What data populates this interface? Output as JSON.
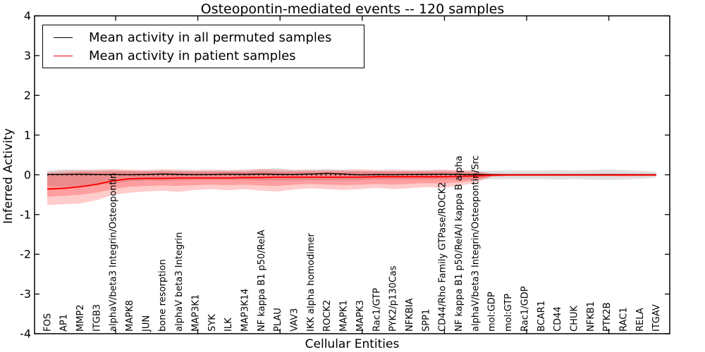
{
  "chart_data": {
    "type": "line",
    "title": "Osteopontin-mediated events -- 120 samples",
    "xlabel": "Cellular Entities",
    "ylabel": "Inferred Activity",
    "ylim": [
      -4,
      4
    ],
    "yticks": [
      4,
      3,
      2,
      1,
      0,
      -1,
      -2,
      -3,
      -4
    ],
    "grid": false,
    "zero_line": {
      "y": 0,
      "style": "dotted",
      "color": "#000000"
    },
    "legend": {
      "position": "upper left",
      "entries": [
        {
          "label": "Mean activity in all permuted samples",
          "color": "#000000"
        },
        {
          "label": "Mean activity in patient samples",
          "color": "#ff0000"
        }
      ]
    },
    "categories": [
      "FOS",
      "AP1",
      "MMP2",
      "ITGB3",
      "alphaV/beta3 Integrin/Osteopontin",
      "MAPK8",
      "JUN",
      "bone resorption",
      "alphaV beta3 Integrin",
      "MAP3K1",
      "SYK",
      "ILK",
      "MAP3K14",
      "NF kappa B1 p50/RelA",
      "PLAU",
      "VAV3",
      "IKK alpha homodimer",
      "ROCK2",
      "MAPK1",
      "MAPK3",
      "Rac1/GTP",
      "PYK2/p130Cas",
      "NFKBIA",
      "SPP1",
      "CD44/Rho Family GTPase/ROCK2",
      "NF kappa B1 p50/RelA/I kappa B alpha",
      "alphaV/beta3 Integrin/Osteopontin/Src",
      "mol:GDP",
      "mol:GTP",
      "Rac1/GDP",
      "BCAR1",
      "CD44",
      "CHUK",
      "NFKB1",
      "PTK2B",
      "RAC1",
      "RELA",
      "ITGAV"
    ],
    "series": [
      {
        "name": "Mean activity in all permuted samples",
        "color": "#000000",
        "values": [
          0.01,
          0.01,
          0.015,
          0.01,
          0.008,
          0.005,
          0.01,
          0.02,
          0.012,
          0.006,
          0.01,
          0.015,
          0.012,
          0.02,
          0.012,
          0.01,
          0.02,
          0.035,
          0.02,
          0.0,
          0.008,
          0.005,
          0.01,
          0.012,
          0.015,
          0.01,
          0.006,
          0.004,
          0.004,
          0.004,
          0.004,
          0.005,
          0.004,
          0.005,
          0.006,
          0.005,
          0.004,
          0.004
        ]
      },
      {
        "name": "Mean activity in patient samples",
        "color": "#ff0000",
        "values": [
          -0.36,
          -0.34,
          -0.3,
          -0.24,
          -0.15,
          -0.1,
          -0.09,
          -0.09,
          -0.08,
          -0.08,
          -0.08,
          -0.08,
          -0.07,
          -0.07,
          -0.06,
          -0.06,
          -0.06,
          -0.06,
          -0.06,
          -0.06,
          -0.05,
          -0.05,
          -0.05,
          -0.05,
          -0.05,
          -0.04,
          -0.03,
          -0.01,
          -0.005,
          -0.005,
          -0.005,
          -0.005,
          -0.005,
          -0.005,
          -0.005,
          -0.005,
          -0.005,
          -0.005
        ]
      }
    ],
    "bands": [
      {
        "name": "permuted-samples-range",
        "color": "#999999",
        "opacity": 0.3,
        "top": [
          0.1,
          0.14,
          0.12,
          0.11,
          0.12,
          0.1,
          0.1,
          0.11,
          0.1,
          0.1,
          0.1,
          0.1,
          0.1,
          0.14,
          0.17,
          0.12,
          0.12,
          0.14,
          0.11,
          0.1,
          0.1,
          0.1,
          0.1,
          0.1,
          0.11,
          0.1,
          0.1,
          0.1,
          0.11,
          0.11,
          0.11,
          0.12,
          0.11,
          0.12,
          0.13,
          0.12,
          0.1,
          0.07
        ],
        "bottom": [
          -0.28,
          -0.3,
          -0.28,
          -0.26,
          -0.22,
          -0.16,
          -0.14,
          -0.15,
          -0.14,
          -0.13,
          -0.13,
          -0.13,
          -0.13,
          -0.15,
          -0.14,
          -0.13,
          -0.13,
          -0.14,
          -0.13,
          -0.13,
          -0.12,
          -0.12,
          -0.12,
          -0.12,
          -0.12,
          -0.12,
          -0.11,
          -0.11,
          -0.11,
          -0.11,
          -0.11,
          -0.12,
          -0.11,
          -0.12,
          -0.13,
          -0.12,
          -0.1,
          -0.07
        ]
      },
      {
        "name": "patient-samples-range-outer",
        "color": "#ff0000",
        "opacity": 0.2,
        "top": [
          0.07,
          0.1,
          0.12,
          0.13,
          0.14,
          0.13,
          0.12,
          0.14,
          0.13,
          0.12,
          0.13,
          0.12,
          0.13,
          0.15,
          0.13,
          0.12,
          0.13,
          0.12,
          0.13,
          0.14,
          0.12,
          0.13,
          0.12,
          0.12,
          0.13,
          0.12,
          0.1,
          0.03,
          0.025,
          0.025,
          0.025,
          0.025,
          0.025,
          0.025,
          0.025,
          0.03,
          0.025,
          0.02
        ],
        "bottom": [
          -0.76,
          -0.74,
          -0.72,
          -0.64,
          -0.5,
          -0.45,
          -0.42,
          -0.4,
          -0.43,
          -0.38,
          -0.36,
          -0.39,
          -0.36,
          -0.4,
          -0.42,
          -0.37,
          -0.34,
          -0.36,
          -0.38,
          -0.36,
          -0.33,
          -0.36,
          -0.34,
          -0.31,
          -0.33,
          -0.28,
          -0.2,
          -0.05,
          -0.035,
          -0.035,
          -0.035,
          -0.035,
          -0.035,
          -0.035,
          -0.035,
          -0.04,
          -0.035,
          -0.03
        ]
      },
      {
        "name": "patient-samples-range-inner",
        "color": "#ff0000",
        "opacity": 0.22,
        "top": [
          0.02,
          0.05,
          0.07,
          0.08,
          0.09,
          0.09,
          0.08,
          0.09,
          0.08,
          0.08,
          0.08,
          0.08,
          0.08,
          0.09,
          0.08,
          0.08,
          0.08,
          0.08,
          0.08,
          0.09,
          0.08,
          0.08,
          0.08,
          0.08,
          0.08,
          0.07,
          0.06,
          0.02,
          0.015,
          0.015,
          0.015,
          0.015,
          0.015,
          0.015,
          0.015,
          0.02,
          0.015,
          0.012
        ],
        "bottom": [
          -0.55,
          -0.53,
          -0.5,
          -0.45,
          -0.36,
          -0.3,
          -0.28,
          -0.27,
          -0.28,
          -0.26,
          -0.25,
          -0.26,
          -0.25,
          -0.27,
          -0.28,
          -0.25,
          -0.23,
          -0.25,
          -0.26,
          -0.25,
          -0.23,
          -0.25,
          -0.23,
          -0.21,
          -0.22,
          -0.19,
          -0.14,
          -0.035,
          -0.025,
          -0.025,
          -0.025,
          -0.025,
          -0.025,
          -0.025,
          -0.025,
          -0.03,
          -0.025,
          -0.02
        ]
      }
    ]
  }
}
